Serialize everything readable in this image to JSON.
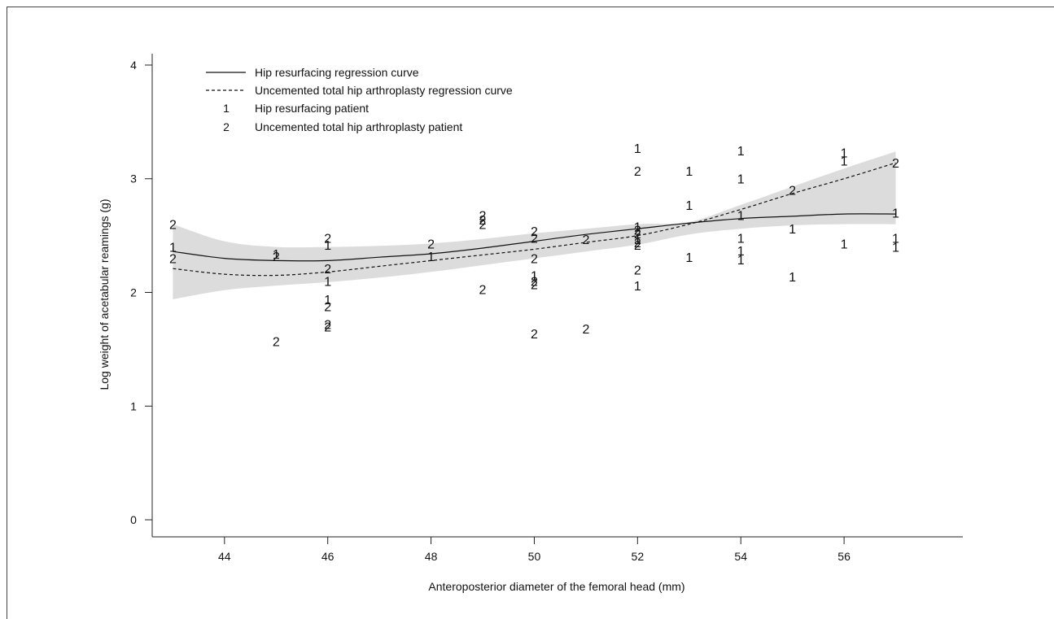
{
  "chart_data": {
    "type": "scatter",
    "title": "",
    "xlabel": "Anteroposterior diameter of the femoral head (mm)",
    "ylabel": "Log weight of acetabular reamings (g)",
    "xlim": [
      42.6,
      58.3
    ],
    "ylim": [
      -0.15,
      4.1
    ],
    "x_ticks": [
      "44",
      "46",
      "48",
      "50",
      "52",
      "54",
      "56"
    ],
    "y_ticks": [
      "0",
      "1",
      "2",
      "3",
      "4"
    ],
    "grid": false,
    "legend_position": "top-left",
    "legend": [
      {
        "style": "solid",
        "label": "Hip resurfacing regression curve"
      },
      {
        "style": "dashed",
        "label": "Uncemented total hip arthroplasty regression curve"
      },
      {
        "style": "marker",
        "marker": "1",
        "label": "Hip resurfacing patient"
      },
      {
        "style": "marker",
        "marker": "2",
        "label": "Uncemented total hip arthroplasty patient"
      }
    ],
    "confidence_band": {
      "color": "#dcdcdc",
      "x": [
        43,
        44,
        45,
        46,
        47,
        48,
        49,
        50,
        51,
        52,
        53,
        54,
        55,
        56,
        57
      ],
      "upper": [
        2.6,
        2.45,
        2.4,
        2.4,
        2.41,
        2.43,
        2.47,
        2.52,
        2.56,
        2.6,
        2.62,
        2.77,
        2.93,
        3.09,
        3.24
      ],
      "lower": [
        1.94,
        2.02,
        2.06,
        2.09,
        2.13,
        2.18,
        2.24,
        2.3,
        2.36,
        2.42,
        2.51,
        2.56,
        2.59,
        2.6,
        2.6
      ]
    },
    "series": [
      {
        "name": "Hip resurfacing regression curve",
        "type": "line",
        "dash": "solid",
        "x": [
          43,
          44,
          45,
          46,
          47,
          48,
          49,
          50,
          51,
          52,
          53,
          54,
          55,
          56,
          57
        ],
        "y": [
          2.36,
          2.3,
          2.28,
          2.28,
          2.31,
          2.34,
          2.39,
          2.45,
          2.51,
          2.56,
          2.61,
          2.65,
          2.67,
          2.69,
          2.69
        ]
      },
      {
        "name": "Uncemented total hip arthroplasty regression curve",
        "type": "line",
        "dash": "dashed",
        "x": [
          43,
          44,
          45,
          46,
          47,
          48,
          49,
          50,
          51,
          52,
          53,
          54,
          55,
          56,
          57
        ],
        "y": [
          2.21,
          2.16,
          2.15,
          2.18,
          2.23,
          2.28,
          2.33,
          2.38,
          2.44,
          2.5,
          2.6,
          2.73,
          2.87,
          3.0,
          3.14
        ]
      },
      {
        "name": "Hip resurfacing patient",
        "type": "scatter",
        "marker": "1",
        "points": [
          [
            43,
            2.4
          ],
          [
            45,
            2.34
          ],
          [
            46,
            2.42
          ],
          [
            46,
            2.1
          ],
          [
            46,
            1.94
          ],
          [
            48,
            2.32
          ],
          [
            50,
            2.15
          ],
          [
            52,
            3.27
          ],
          [
            52,
            2.58
          ],
          [
            52,
            2.47
          ],
          [
            52,
            2.06
          ],
          [
            53,
            3.07
          ],
          [
            53,
            2.77
          ],
          [
            53,
            2.31
          ],
          [
            54,
            3.25
          ],
          [
            54,
            3.0
          ],
          [
            54,
            2.68
          ],
          [
            54,
            2.48
          ],
          [
            54,
            2.37
          ],
          [
            54,
            2.29
          ],
          [
            55,
            2.56
          ],
          [
            55,
            2.14
          ],
          [
            56,
            3.23
          ],
          [
            56,
            3.16
          ],
          [
            56,
            2.43
          ],
          [
            57,
            2.7
          ],
          [
            57,
            2.48
          ],
          [
            57,
            2.4
          ]
        ]
      },
      {
        "name": "Uncemented total hip arthroplasty patient",
        "type": "scatter",
        "marker": "2",
        "points": [
          [
            43,
            2.6
          ],
          [
            43,
            2.3
          ],
          [
            45,
            2.32
          ],
          [
            45,
            1.57
          ],
          [
            46,
            2.48
          ],
          [
            46,
            2.21
          ],
          [
            46,
            1.88
          ],
          [
            46,
            1.72
          ],
          [
            46,
            1.7
          ],
          [
            48,
            2.43
          ],
          [
            49,
            2.68
          ],
          [
            49,
            2.64
          ],
          [
            49,
            2.6
          ],
          [
            49,
            2.03
          ],
          [
            50,
            2.54
          ],
          [
            50,
            2.48
          ],
          [
            50,
            2.3
          ],
          [
            50,
            2.1
          ],
          [
            50,
            2.07
          ],
          [
            50,
            1.64
          ],
          [
            51,
            2.47
          ],
          [
            51,
            1.68
          ],
          [
            52,
            3.07
          ],
          [
            52,
            2.55
          ],
          [
            52,
            2.52
          ],
          [
            52,
            2.44
          ],
          [
            52,
            2.42
          ],
          [
            52,
            2.2
          ],
          [
            55,
            2.9
          ],
          [
            57,
            3.14
          ]
        ]
      }
    ]
  }
}
